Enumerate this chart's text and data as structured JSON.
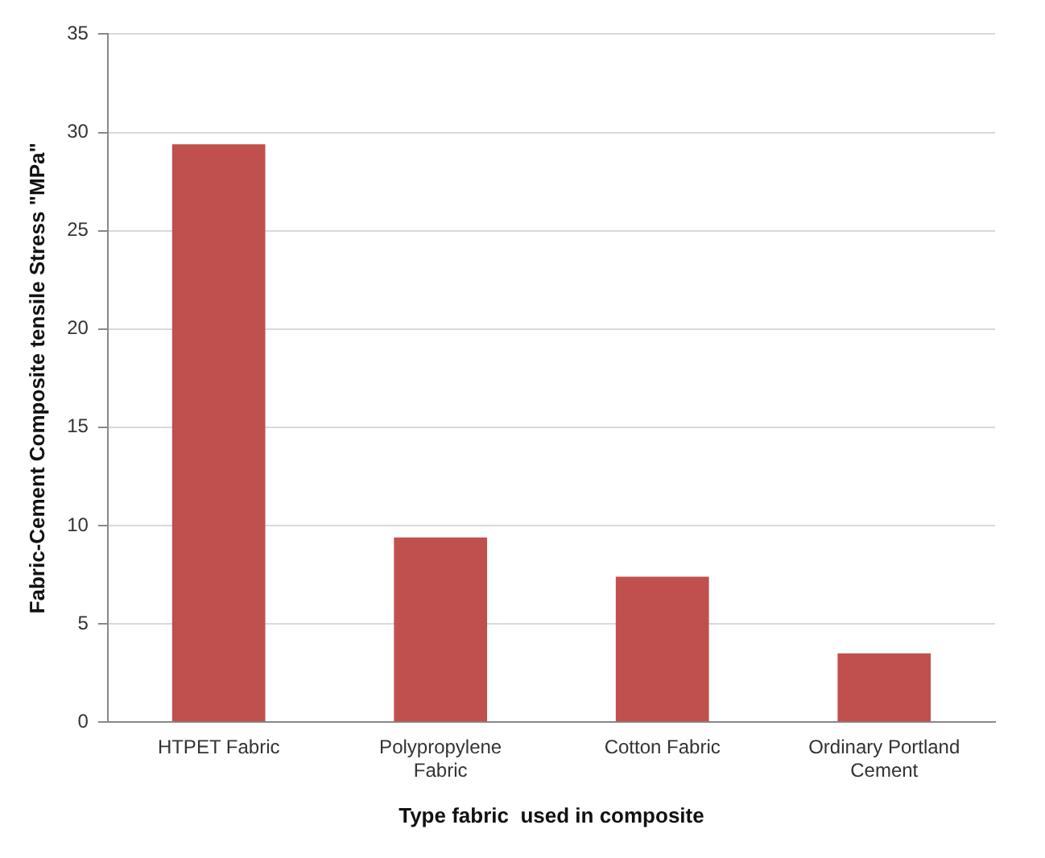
{
  "chart_data": {
    "type": "bar",
    "xlabel": "Type fabric  used in composite",
    "ylabel": "Fabric-Cement Composite tensile Stress \"MPa\"",
    "categories": [
      "HTPET Fabric",
      "Polypropylene Fabric",
      "Cotton Fabric",
      "Ordinary Portland Cement"
    ],
    "values": [
      29.4,
      9.4,
      7.4,
      3.5
    ],
    "color": "#c0504d",
    "ylim": [
      0,
      35
    ],
    "yticks": [
      0,
      5,
      10,
      15,
      20,
      25,
      30,
      35
    ],
    "grid": "y",
    "legend": false
  }
}
